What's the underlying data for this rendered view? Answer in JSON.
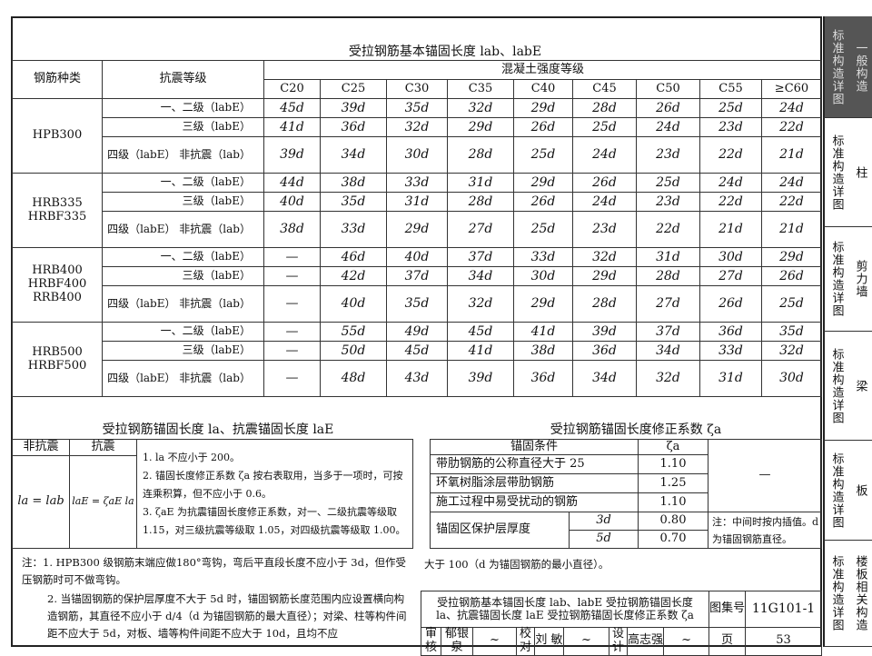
{
  "main_table": {
    "title": "受拉钢筋基本锚固长度 lab、labE",
    "col_type": "钢筋种类",
    "col_level": "抗震等级",
    "col_concrete": "混凝土强度等级",
    "grades": [
      "C20",
      "C25",
      "C30",
      "C35",
      "C40",
      "C45",
      "C50",
      "C55",
      "≥C60"
    ],
    "groups": [
      {
        "type": "HPB300",
        "rows": [
          {
            "level": "一、二级（labE）",
            "values": [
              "45d",
              "39d",
              "35d",
              "32d",
              "29d",
              "28d",
              "26d",
              "25d",
              "24d"
            ]
          },
          {
            "level": "三级（labE）",
            "values": [
              "41d",
              "36d",
              "32d",
              "29d",
              "26d",
              "25d",
              "24d",
              "23d",
              "22d"
            ]
          },
          {
            "level": "四级（labE） 非抗震（lab）",
            "values": [
              "39d",
              "34d",
              "30d",
              "28d",
              "25d",
              "24d",
              "23d",
              "22d",
              "21d"
            ]
          }
        ]
      },
      {
        "type": "HRB335 HRBF335",
        "rows": [
          {
            "level": "一、二级（labE）",
            "values": [
              "44d",
              "38d",
              "33d",
              "31d",
              "29d",
              "26d",
              "25d",
              "24d",
              "24d"
            ]
          },
          {
            "level": "三级（labE）",
            "values": [
              "40d",
              "35d",
              "31d",
              "28d",
              "26d",
              "24d",
              "23d",
              "22d",
              "22d"
            ]
          },
          {
            "level": "四级（labE） 非抗震（lab）",
            "values": [
              "38d",
              "33d",
              "29d",
              "27d",
              "25d",
              "23d",
              "22d",
              "21d",
              "21d"
            ]
          }
        ]
      },
      {
        "type": "HRB400 HRBF400 RRB400",
        "rows": [
          {
            "level": "一、二级（labE）",
            "values": [
              "—",
              "46d",
              "40d",
              "37d",
              "33d",
              "32d",
              "31d",
              "30d",
              "29d"
            ]
          },
          {
            "level": "三级（labE）",
            "values": [
              "—",
              "42d",
              "37d",
              "34d",
              "30d",
              "29d",
              "28d",
              "27d",
              "26d"
            ]
          },
          {
            "level": "四级（labE） 非抗震（lab）",
            "values": [
              "—",
              "40d",
              "35d",
              "32d",
              "29d",
              "28d",
              "27d",
              "26d",
              "25d"
            ]
          }
        ]
      },
      {
        "type": "HRB500 HRBF500",
        "rows": [
          {
            "level": "一、二级（labE）",
            "values": [
              "—",
              "55d",
              "49d",
              "45d",
              "41d",
              "39d",
              "37d",
              "36d",
              "35d"
            ]
          },
          {
            "level": "三级（labE）",
            "values": [
              "—",
              "50d",
              "45d",
              "41d",
              "38d",
              "36d",
              "34d",
              "33d",
              "32d"
            ]
          },
          {
            "level": "四级（labE） 非抗震（lab）",
            "values": [
              "—",
              "48d",
              "43d",
              "39d",
              "36d",
              "34d",
              "32d",
              "31d",
              "30d"
            ]
          }
        ]
      }
    ]
  },
  "anchor_table": {
    "title": "受拉钢筋锚固长度 la、抗震锚固长度 laE",
    "col_non": "非抗震",
    "col_seismic": "抗震",
    "formula_non": "la = lab",
    "formula_seismic": "laE = ζaE la",
    "notes": [
      "1. la 不应小于 200。",
      "2. 锚固长度修正系数 ζa 按右表取用，当多于一项时，可按连乘积算，但不应小于 0.6。",
      "3. ζaE 为抗震锚固长度修正系数，对一、二级抗震等级取 1.15，对三级抗震等级取 1.05，对四级抗震等级取 1.00。"
    ]
  },
  "coef_table": {
    "title": "受拉钢筋锚固长度修正系数 ζa",
    "col_condition": "锚固条件",
    "col_zeta": "ζa",
    "rows": [
      {
        "condition": "带肋钢筋的公称直径大于 25",
        "value": "1.10"
      },
      {
        "condition": "环氧树脂涂层带肋钢筋",
        "value": "1.25"
      },
      {
        "condition": "施工过程中易受扰动的钢筋",
        "value": "1.10"
      }
    ],
    "dash": "—",
    "cover": {
      "condition": "锚固区保护层厚度",
      "rows": [
        {
          "sub": "3d",
          "value": "0.80"
        },
        {
          "sub": "5d",
          "value": "0.70"
        }
      ]
    },
    "note": "注：中间时按内插值。d 为锚固钢筋直径。"
  },
  "footnotes": {
    "n1": "注：1. HPB300 级钢筋末端应做180°弯钩，弯后平直段长度不应小于 3d，但作受压钢筋时可不做弯钩。",
    "n2": "2. 当锚固钢筋的保护层厚度不大于 5d 时，锚固钢筋长度范围内应设置横向构造钢筋，其直径不应小于 d/4（d 为锚固钢筋的最大直径）；对梁、柱等构件间距不应大于 5d，对板、墙等构件间距不应大于 10d，且均不应",
    "n2_cont": "大于 100（d 为锚固钢筋的最小直径）。"
  },
  "title_block": {
    "name": "受拉钢筋基本锚固长度 lab、labE 受拉钢筋锚固长度 la、抗震锚固长度 laE 受拉钢筋锚固长度修正系数 ζa",
    "atlas_label": "图集号",
    "atlas_no": "11G101-1",
    "review_label": "审核",
    "reviewer": "郁银泉",
    "check_label": "校对",
    "checker": "刘 敏",
    "design_label": "设计",
    "designer": "高志强",
    "page_label": "页",
    "page_no": "53"
  },
  "side_tabs": [
    {
      "a": "标准构造详图",
      "b": "一般构造",
      "active": true
    },
    {
      "a": "标准构造详图",
      "b": "柱"
    },
    {
      "a": "标准构造详图",
      "b": "剪力墙"
    },
    {
      "a": "标准构造详图",
      "b": "梁"
    },
    {
      "a": "标准构造详图",
      "b": "板"
    },
    {
      "a": "标准构造详图",
      "b": "楼板相关构造"
    }
  ]
}
